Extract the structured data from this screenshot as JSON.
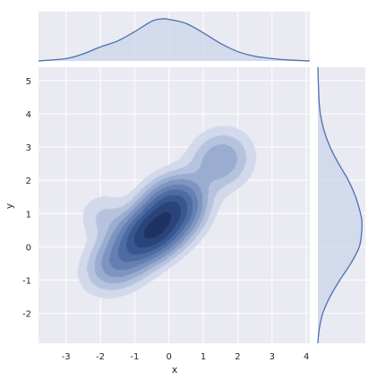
{
  "chart_data": {
    "type": "jointplot-kde",
    "title": "",
    "xlabel": "x",
    "ylabel": "y",
    "xlim": [
      -3.8,
      4.1
    ],
    "ylim": [
      -2.9,
      5.4
    ],
    "xticks": [
      "-3",
      "-2",
      "-1",
      "0",
      "1",
      "2",
      "3",
      "4"
    ],
    "yticks": [
      "-2",
      "-1",
      "0",
      "1",
      "2",
      "3",
      "4",
      "5"
    ],
    "grid": true,
    "colors": {
      "background": "#eaeaf2",
      "grid": "#ffffff",
      "fill_levels": [
        "#d1d9ea",
        "#b6c3de",
        "#9aaccf",
        "#7f95c1",
        "#6680b3",
        "#4e6ba2",
        "#3a5690",
        "#2a437a",
        "#1e3363"
      ],
      "marginal_line": "#4c72b0",
      "marginal_fill": "#c9d4ea"
    },
    "joint_density": {
      "components": [
        {
          "mean": [
            -0.55,
            0.4
          ],
          "sd": [
            0.55,
            0.5
          ],
          "rho": 0.25,
          "weight": 0.45
        },
        {
          "mean": [
            0.1,
            1.15
          ],
          "sd": [
            0.55,
            0.55
          ],
          "rho": 0.2,
          "weight": 0.4
        },
        {
          "mean": [
            -1.4,
            -0.4
          ],
          "sd": [
            0.6,
            0.55
          ],
          "rho": 0.3,
          "weight": 0.18
        },
        {
          "mean": [
            1.5,
            2.6
          ],
          "sd": [
            0.55,
            0.55
          ],
          "rho": 0.1,
          "weight": 0.12
        },
        {
          "mean": [
            -1.9,
            0.9
          ],
          "sd": [
            0.45,
            0.45
          ],
          "rho": 0.0,
          "weight": 0.05
        }
      ],
      "levels": [
        0.015,
        0.035,
        0.06,
        0.09,
        0.13,
        0.18,
        0.24,
        0.31,
        0.4
      ]
    },
    "x_marginal": {
      "x": [
        -3.8,
        -3.0,
        -2.5,
        -2.0,
        -1.5,
        -1.0,
        -0.5,
        -0.2,
        0.0,
        0.5,
        1.0,
        1.5,
        2.0,
        2.5,
        3.0,
        3.5,
        4.1
      ],
      "density": [
        0.0,
        0.02,
        0.06,
        0.12,
        0.17,
        0.25,
        0.34,
        0.36,
        0.355,
        0.32,
        0.24,
        0.15,
        0.08,
        0.04,
        0.02,
        0.008,
        0.0
      ]
    },
    "y_marginal": {
      "y": [
        -2.9,
        -2.5,
        -2.0,
        -1.5,
        -1.0,
        -0.5,
        0.0,
        0.5,
        0.8,
        1.0,
        1.5,
        2.0,
        2.5,
        3.0,
        3.5,
        4.0,
        4.5,
        5.4
      ],
      "density": [
        0.0,
        0.01,
        0.04,
        0.1,
        0.18,
        0.27,
        0.34,
        0.36,
        0.36,
        0.35,
        0.31,
        0.25,
        0.17,
        0.1,
        0.05,
        0.02,
        0.008,
        0.0
      ]
    }
  }
}
